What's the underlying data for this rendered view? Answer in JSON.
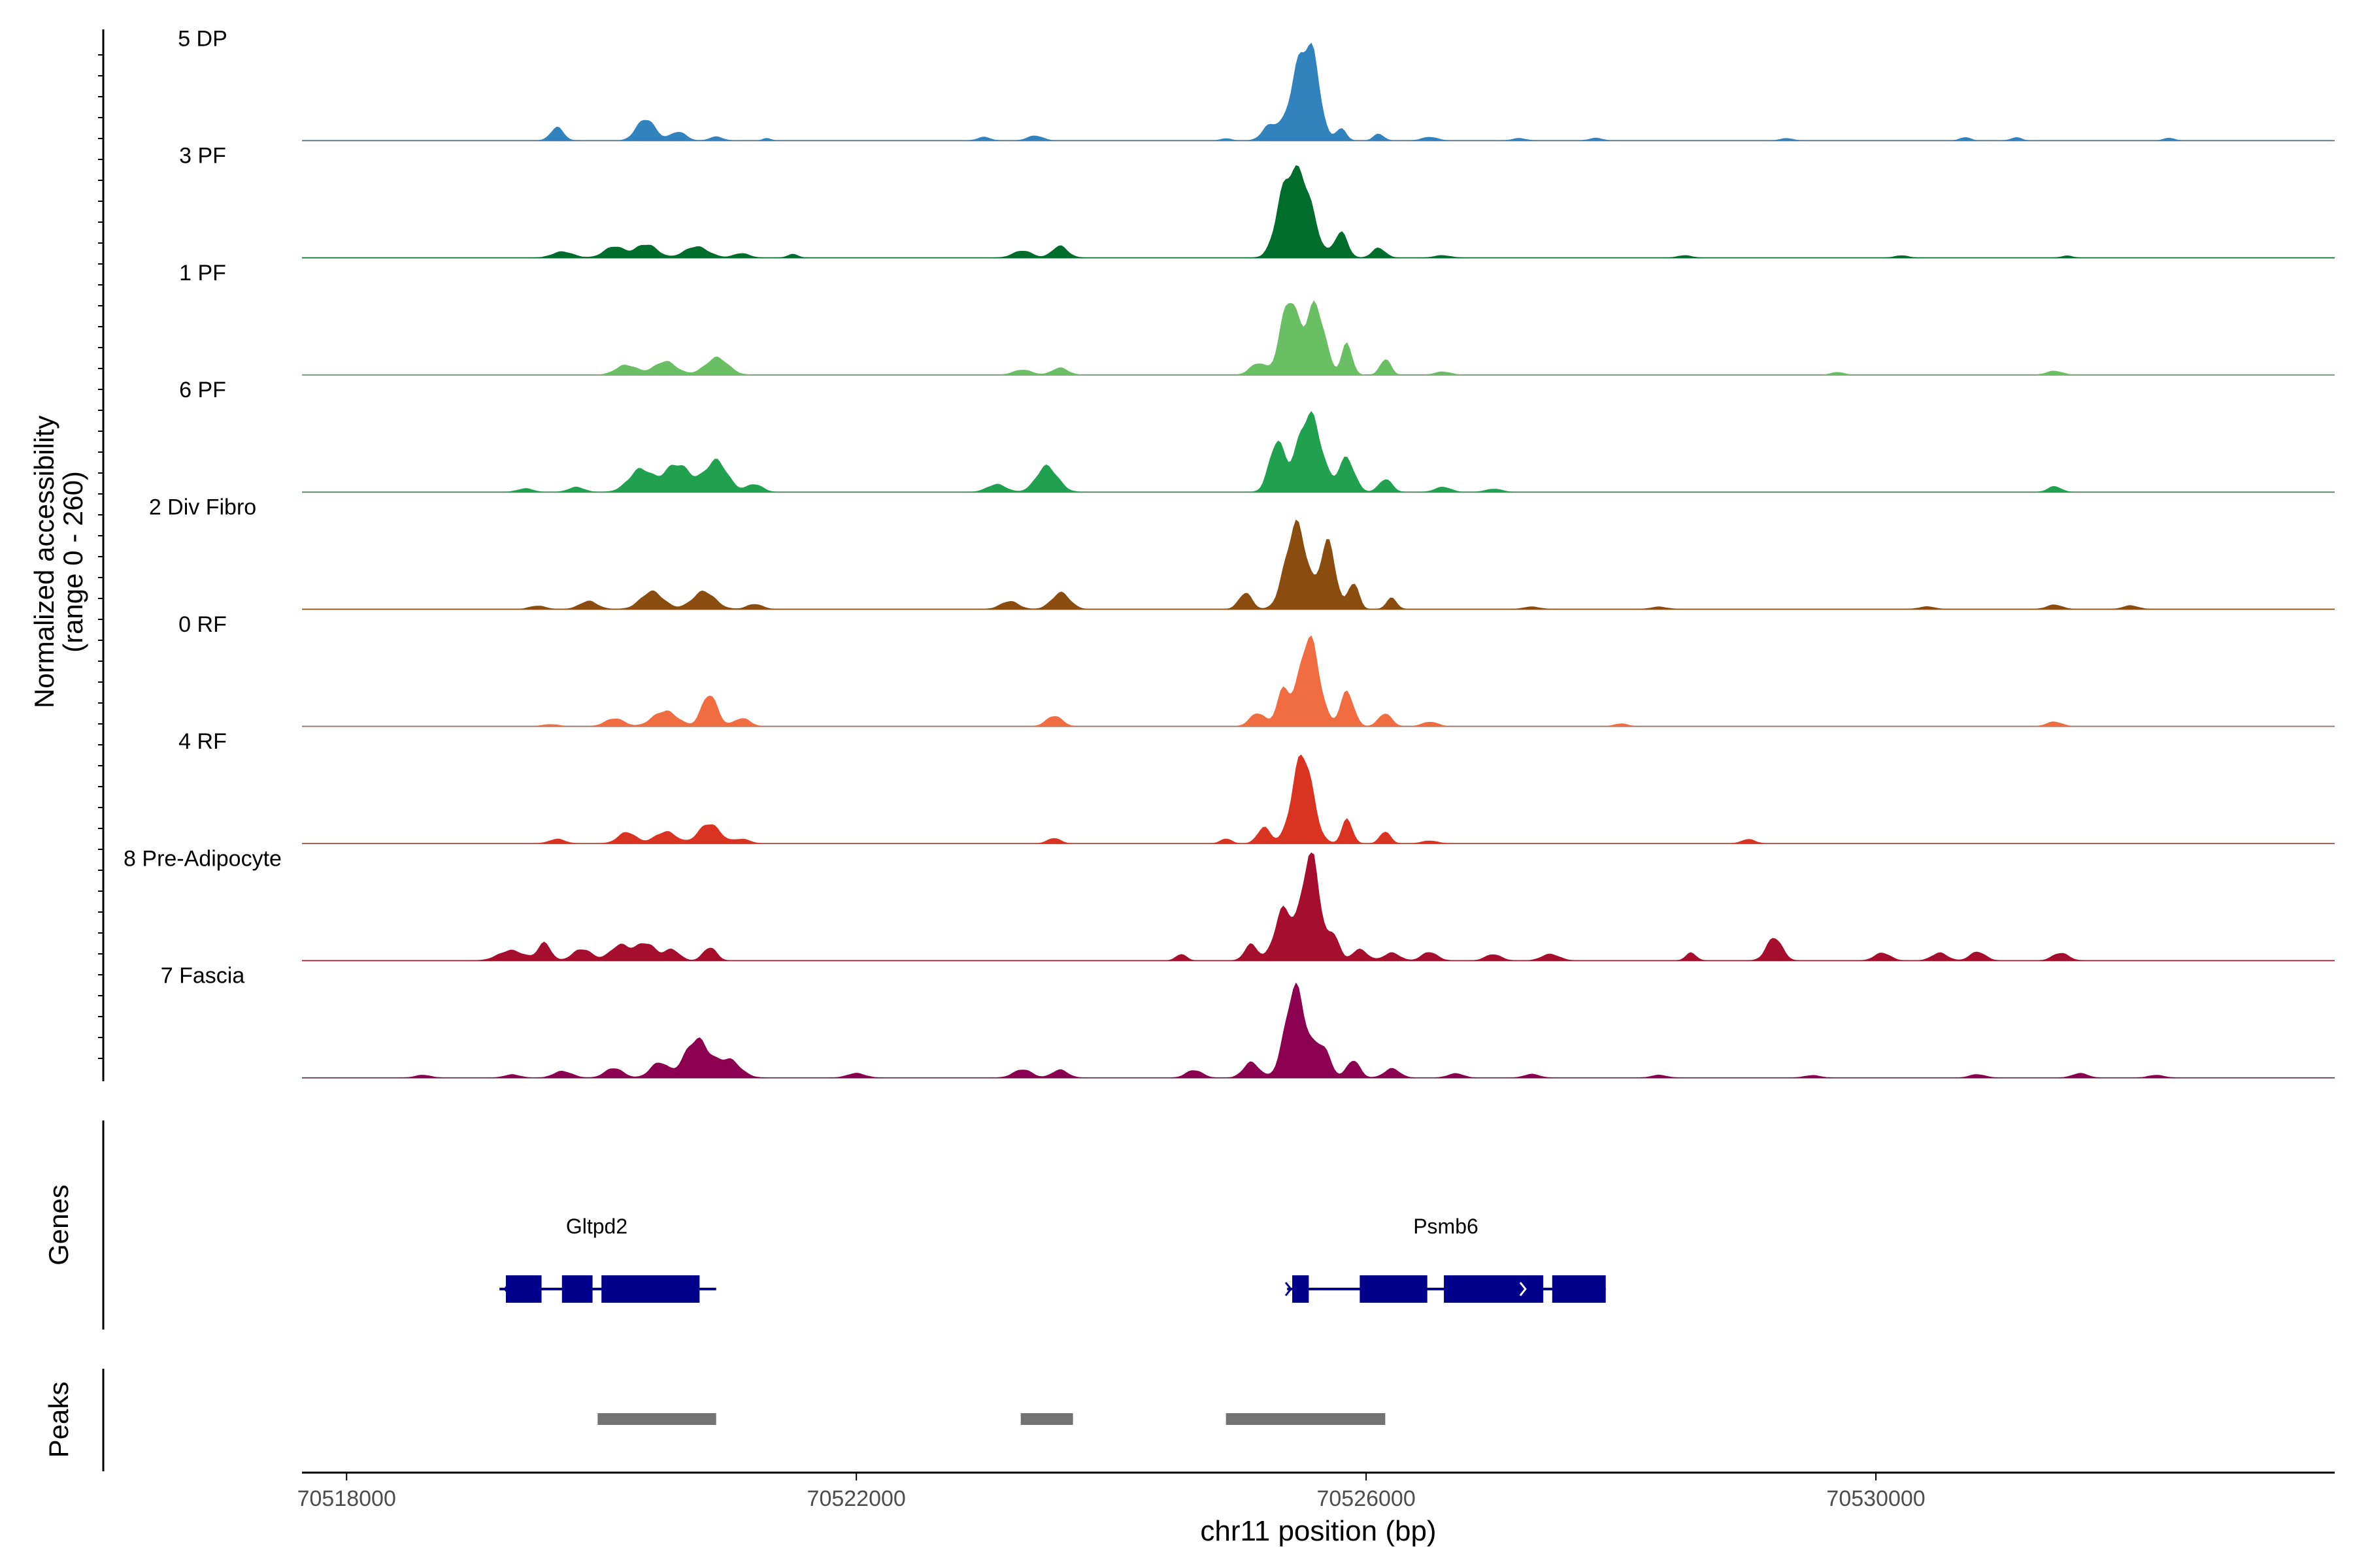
{
  "chart_data": {
    "type": "area",
    "title": "",
    "region": "chr11",
    "xlabel": "chr11 position (bp)",
    "xlim": [
      70517650,
      70533600
    ],
    "x_ticks": [
      "70518000",
      "70522000",
      "70526000",
      "70530000"
    ],
    "x_tick_values": [
      70518000,
      70522000,
      70526000,
      70530000
    ],
    "ylabel": "Normalized accessibility",
    "ylabel_range": "(range 0 - 260)",
    "ylim": [
      0,
      260
    ],
    "series": [
      {
        "name": "5 DP",
        "color": "#3283bd",
        "peaks": [
          [
            70519650,
            30,
            50
          ],
          [
            70520350,
            55,
            70
          ],
          [
            70520600,
            20,
            60
          ],
          [
            70520900,
            10,
            50
          ],
          [
            70521300,
            6,
            30
          ],
          [
            70523000,
            8,
            50
          ],
          [
            70523400,
            12,
            60
          ],
          [
            70524900,
            5,
            40
          ],
          [
            70525250,
            40,
            60
          ],
          [
            70525500,
            190,
            90
          ],
          [
            70525600,
            90,
            50
          ],
          [
            70525800,
            30,
            40
          ],
          [
            70526100,
            16,
            40
          ],
          [
            70526500,
            8,
            60
          ],
          [
            70527200,
            6,
            50
          ],
          [
            70527800,
            6,
            50
          ],
          [
            70529300,
            5,
            50
          ],
          [
            70530700,
            8,
            40
          ],
          [
            70531100,
            8,
            40
          ],
          [
            70532300,
            6,
            40
          ]
        ]
      },
      {
        "name": "3 PF",
        "color": "#006d2c",
        "peaks": [
          [
            70519700,
            14,
            80
          ],
          [
            70520100,
            25,
            80
          ],
          [
            70520350,
            35,
            80
          ],
          [
            70520750,
            28,
            90
          ],
          [
            70521100,
            10,
            60
          ],
          [
            70521500,
            8,
            40
          ],
          [
            70523300,
            18,
            70
          ],
          [
            70523600,
            28,
            60
          ],
          [
            70525350,
            120,
            70
          ],
          [
            70525500,
            180,
            90
          ],
          [
            70525800,
            60,
            50
          ],
          [
            70526100,
            25,
            50
          ],
          [
            70526600,
            6,
            60
          ],
          [
            70528500,
            6,
            50
          ],
          [
            70530200,
            5,
            50
          ],
          [
            70531500,
            5,
            40
          ]
        ]
      },
      {
        "name": "1 PF",
        "color": "#6abf64",
        "peaks": [
          [
            70520200,
            25,
            80
          ],
          [
            70520500,
            30,
            90
          ],
          [
            70520900,
            40,
            90
          ],
          [
            70523300,
            12,
            70
          ],
          [
            70523600,
            18,
            60
          ],
          [
            70525150,
            30,
            60
          ],
          [
            70525400,
            170,
            70
          ],
          [
            70525600,
            180,
            70
          ],
          [
            70525850,
            70,
            40
          ],
          [
            70526150,
            40,
            40
          ],
          [
            70526600,
            8,
            60
          ],
          [
            70529700,
            6,
            50
          ],
          [
            70531400,
            10,
            60
          ]
        ]
      },
      {
        "name": "6 PF",
        "color": "#21a150",
        "peaks": [
          [
            70519400,
            8,
            60
          ],
          [
            70519800,
            12,
            60
          ],
          [
            70520300,
            55,
            90
          ],
          [
            70520600,
            70,
            100
          ],
          [
            70520900,
            70,
            90
          ],
          [
            70521200,
            20,
            60
          ],
          [
            70523100,
            20,
            70
          ],
          [
            70523500,
            65,
            80
          ],
          [
            70525300,
            110,
            60
          ],
          [
            70525550,
            200,
            90
          ],
          [
            70525850,
            80,
            60
          ],
          [
            70526150,
            30,
            50
          ],
          [
            70526600,
            12,
            60
          ],
          [
            70527000,
            8,
            60
          ],
          [
            70531400,
            14,
            50
          ]
        ]
      },
      {
        "name": "2 Div Fibro",
        "color": "#8a4c0f",
        "peaks": [
          [
            70519500,
            8,
            60
          ],
          [
            70519900,
            18,
            70
          ],
          [
            70520400,
            40,
            90
          ],
          [
            70520800,
            40,
            90
          ],
          [
            70521200,
            12,
            60
          ],
          [
            70523200,
            18,
            70
          ],
          [
            70523600,
            40,
            70
          ],
          [
            70525050,
            40,
            50
          ],
          [
            70525450,
            220,
            80
          ],
          [
            70525700,
            150,
            60
          ],
          [
            70525900,
            70,
            40
          ],
          [
            70526200,
            25,
            40
          ],
          [
            70527300,
            6,
            60
          ],
          [
            70528300,
            6,
            60
          ],
          [
            70530400,
            6,
            60
          ],
          [
            70531400,
            10,
            60
          ],
          [
            70532000,
            8,
            60
          ]
        ]
      },
      {
        "name": "0 RF",
        "color": "#f06d42",
        "peaks": [
          [
            70519600,
            5,
            60
          ],
          [
            70520100,
            20,
            70
          ],
          [
            70520500,
            40,
            90
          ],
          [
            70520850,
            75,
            60
          ],
          [
            70521100,
            20,
            60
          ],
          [
            70523550,
            25,
            60
          ],
          [
            70525150,
            30,
            60
          ],
          [
            70525350,
            90,
            50
          ],
          [
            70525550,
            200,
            80
          ],
          [
            70525850,
            90,
            50
          ],
          [
            70526150,
            30,
            50
          ],
          [
            70526500,
            10,
            60
          ],
          [
            70528000,
            6,
            50
          ],
          [
            70531400,
            10,
            60
          ]
        ]
      },
      {
        "name": "4 RF",
        "color": "#d93321",
        "peaks": [
          [
            70519650,
            10,
            60
          ],
          [
            70520200,
            25,
            70
          ],
          [
            70520500,
            30,
            80
          ],
          [
            70520850,
            50,
            80
          ],
          [
            70521100,
            10,
            60
          ],
          [
            70523550,
            12,
            50
          ],
          [
            70524900,
            12,
            40
          ],
          [
            70525200,
            40,
            50
          ],
          [
            70525500,
            200,
            80
          ],
          [
            70525850,
            60,
            40
          ],
          [
            70526150,
            30,
            40
          ],
          [
            70526500,
            6,
            60
          ],
          [
            70529000,
            10,
            50
          ]
        ]
      },
      {
        "name": "8 Pre-Adipocyte",
        "color": "#a50f2d",
        "peaks": [
          [
            70519300,
            25,
            100
          ],
          [
            70519550,
            40,
            50
          ],
          [
            70519850,
            30,
            70
          ],
          [
            70520150,
            35,
            80
          ],
          [
            70520350,
            45,
            70
          ],
          [
            70520550,
            25,
            60
          ],
          [
            70520850,
            35,
            50
          ],
          [
            70524550,
            15,
            40
          ],
          [
            70525100,
            40,
            50
          ],
          [
            70525350,
            120,
            70
          ],
          [
            70525570,
            260,
            70
          ],
          [
            70525750,
            60,
            40
          ],
          [
            70525950,
            25,
            60
          ],
          [
            70526200,
            20,
            60
          ],
          [
            70526500,
            20,
            60
          ],
          [
            70527000,
            15,
            60
          ],
          [
            70527450,
            15,
            70
          ],
          [
            70528550,
            20,
            40
          ],
          [
            70529200,
            55,
            60
          ],
          [
            70530050,
            20,
            60
          ],
          [
            70530500,
            20,
            60
          ],
          [
            70530800,
            20,
            60
          ],
          [
            70531450,
            20,
            60
          ]
        ]
      },
      {
        "name": "7 Fascia",
        "color": "#8c0052",
        "peaks": [
          [
            70518600,
            6,
            60
          ],
          [
            70519300,
            8,
            60
          ],
          [
            70519700,
            16,
            70
          ],
          [
            70520100,
            22,
            70
          ],
          [
            70520450,
            35,
            70
          ],
          [
            70520750,
            100,
            90
          ],
          [
            70521000,
            40,
            90
          ],
          [
            70522000,
            10,
            70
          ],
          [
            70523300,
            20,
            70
          ],
          [
            70523600,
            20,
            60
          ],
          [
            70524650,
            20,
            60
          ],
          [
            70525100,
            40,
            60
          ],
          [
            70525450,
            210,
            80
          ],
          [
            70525650,
            80,
            60
          ],
          [
            70525900,
            40,
            50
          ],
          [
            70526200,
            22,
            60
          ],
          [
            70526700,
            10,
            60
          ],
          [
            70527300,
            8,
            60
          ],
          [
            70528300,
            6,
            60
          ],
          [
            70529500,
            6,
            60
          ],
          [
            70530800,
            8,
            60
          ],
          [
            70531600,
            10,
            60
          ],
          [
            70532200,
            6,
            60
          ]
        ]
      }
    ],
    "genes": {
      "label": "Genes",
      "color": "#00008b",
      "items": [
        {
          "name": "Gltpd2",
          "strand": "-",
          "start": 70519200,
          "end": 70520900,
          "exons": [
            [
              70519250,
              70519530
            ],
            [
              70519690,
              70519930
            ],
            [
              70520000,
              70520770
            ]
          ]
        },
        {
          "name": "Psmb6",
          "strand": "+",
          "start": 70525380,
          "end": 70527880,
          "exons": [
            [
              70525420,
              70525550
            ],
            [
              70525950,
              70526480
            ],
            [
              70526610,
              70527390
            ],
            [
              70527460,
              70527880
            ]
          ]
        }
      ]
    },
    "peak_regions": {
      "label": "Peaks",
      "color": "#737373",
      "items": [
        [
          70519970,
          70520900
        ],
        [
          70523290,
          70523700
        ],
        [
          70524900,
          70526150
        ]
      ]
    }
  }
}
